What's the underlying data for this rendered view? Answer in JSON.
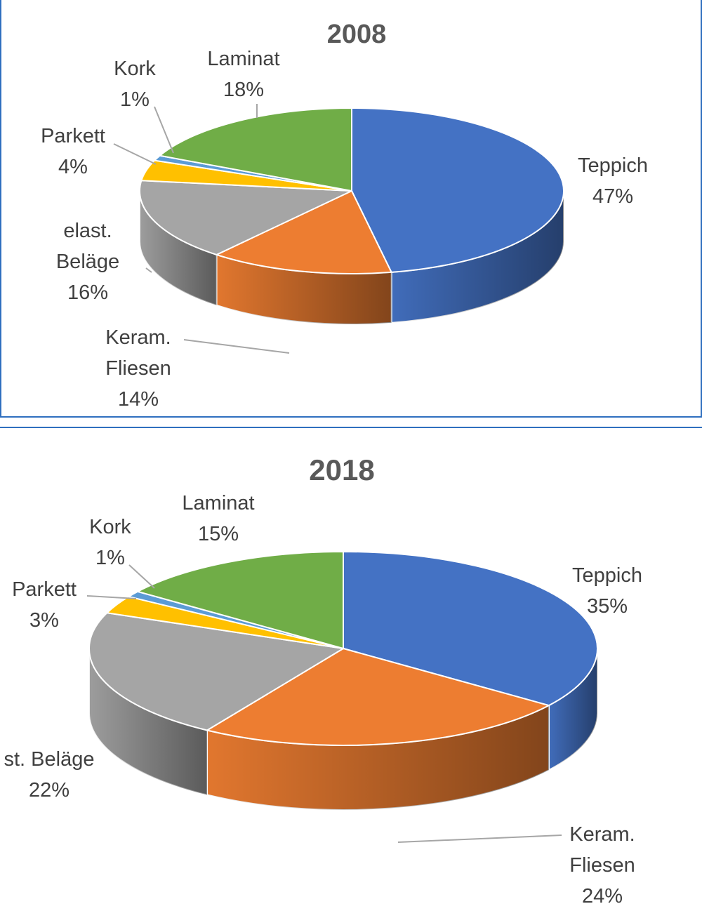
{
  "colors": {
    "Teppich": "#4472c4",
    "Keram. Fliesen": "#ed7d31",
    "elast. Beläge": "#a5a5a5",
    "Parkett": "#ffc000",
    "Kork": "#5b9bd5",
    "Laminat": "#70ad47",
    "frame": "#2f6fbf"
  },
  "chart_data": [
    {
      "type": "pie",
      "title": "2008",
      "legend": "none",
      "slices": [
        {
          "label_lines": [
            "Teppich"
          ],
          "value": 47,
          "value_label": "47%"
        },
        {
          "label_lines": [
            "Keram.",
            "Fliesen"
          ],
          "value": 14,
          "value_label": "14%"
        },
        {
          "label_lines": [
            "elast.",
            "Beläge"
          ],
          "value": 16,
          "value_label": "16%"
        },
        {
          "label_lines": [
            "Parkett"
          ],
          "value": 4,
          "value_label": "4%"
        },
        {
          "label_lines": [
            "Kork"
          ],
          "value": 1,
          "value_label": "1%"
        },
        {
          "label_lines": [
            "Laminat"
          ],
          "value": 18,
          "value_label": "18%"
        }
      ]
    },
    {
      "type": "pie",
      "title": "2018",
      "legend": "none",
      "slices": [
        {
          "label_lines": [
            "Teppich"
          ],
          "value": 35,
          "value_label": "35%"
        },
        {
          "label_lines": [
            "Keram.",
            "Fliesen"
          ],
          "value": 24,
          "value_label": "24%"
        },
        {
          "label_lines": [
            "st. Beläge"
          ],
          "value": 22,
          "value_label": "22%"
        },
        {
          "label_lines": [
            "Parkett"
          ],
          "value": 3,
          "value_label": "3%"
        },
        {
          "label_lines": [
            "Kork"
          ],
          "value": 1,
          "value_label": "1%"
        },
        {
          "label_lines": [
            "Laminat"
          ],
          "value": 15,
          "value_label": "15%"
        }
      ]
    }
  ]
}
